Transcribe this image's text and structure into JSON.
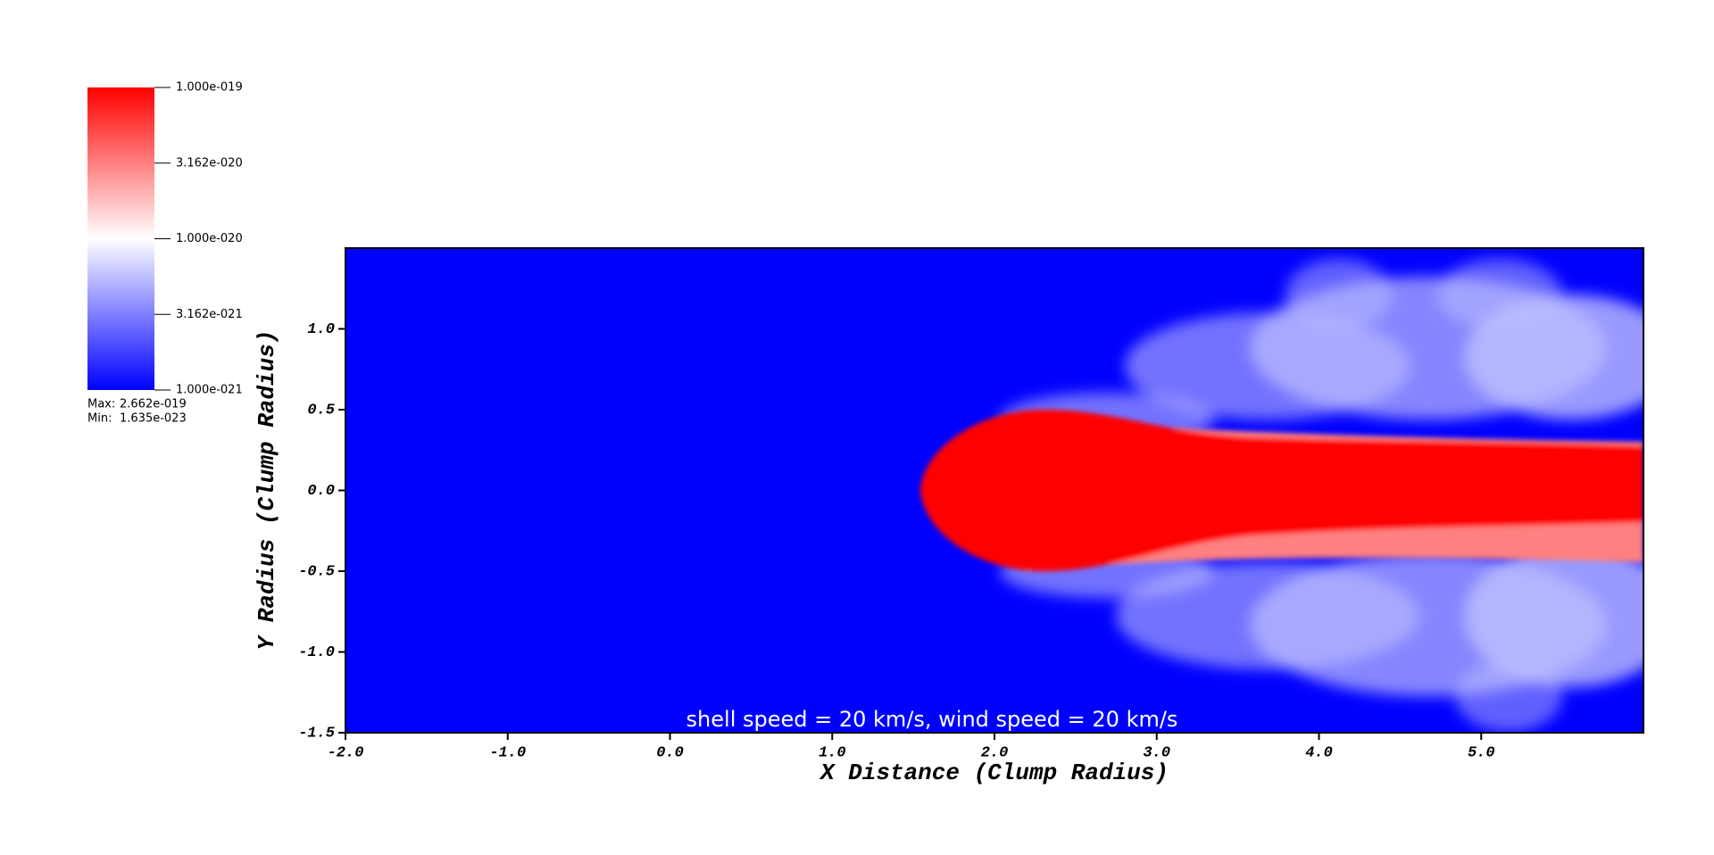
{
  "chart_data": {
    "type": "pseudocolor",
    "xlabel": "X Distance (Clump Radius)",
    "ylabel": "Y Radius (Clump Radius)",
    "annotation": "shell speed = 20 km/s, wind speed = 20 km/s",
    "xlim": [
      -2,
      6
    ],
    "ylim": [
      -1.5,
      1.5
    ],
    "xticks": [
      {
        "value": -2,
        "label": "-2.0"
      },
      {
        "value": -1,
        "label": "-1.0"
      },
      {
        "value": 0,
        "label": "0.0"
      },
      {
        "value": 1,
        "label": "1.0"
      },
      {
        "value": 2,
        "label": "2.0"
      },
      {
        "value": 3,
        "label": "3.0"
      },
      {
        "value": 4,
        "label": "4.0"
      },
      {
        "value": 5,
        "label": "5.0"
      }
    ],
    "yticks": [
      {
        "value": -1.5,
        "label": "-1.5"
      },
      {
        "value": -1,
        "label": "-1.0"
      },
      {
        "value": -0.5,
        "label": "-0.5"
      },
      {
        "value": 0,
        "label": "0.0"
      },
      {
        "value": 0.5,
        "label": "0.5"
      },
      {
        "value": 1,
        "label": "1.0"
      }
    ],
    "colorbar": {
      "log_scale": true,
      "lim": [
        1e-21,
        1e-19
      ],
      "colors": [
        "#0000ff",
        "#ffffff",
        "#ff0000"
      ],
      "ticks": [
        {
          "value": 1e-19,
          "label": "1.000e-019"
        },
        {
          "value": 3.162e-20,
          "label": "3.162e-020"
        },
        {
          "value": 1e-20,
          "label": "1.000e-020"
        },
        {
          "value": 3.162e-21,
          "label": "3.162e-021"
        },
        {
          "value": 1e-21,
          "label": "1.000e-021"
        }
      ],
      "max_caption": "Max:",
      "max": {
        "value": 2.662e-19,
        "label": "2.662e-019"
      },
      "min_caption": "Min:",
      "min": {
        "value": 1.635e-23,
        "label": "1.635e-023"
      }
    }
  }
}
